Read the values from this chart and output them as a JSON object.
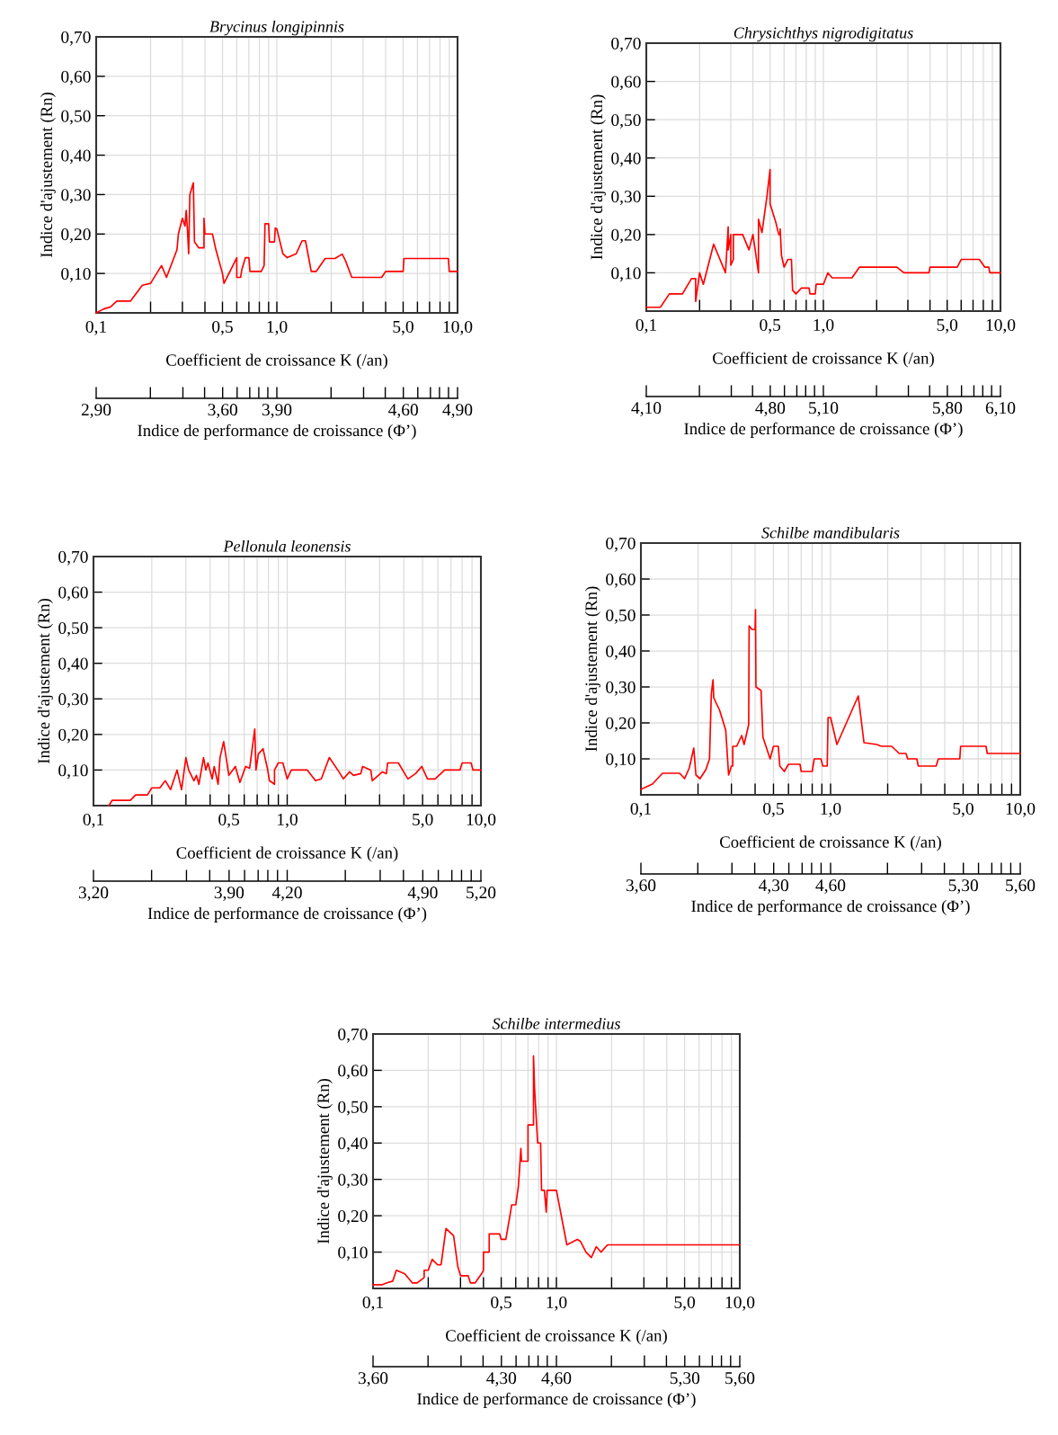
{
  "chart_data": [
    {
      "type": "line",
      "title": "Brycinus longipinnis",
      "xlabel": "Coefficient de croissance K (/an)",
      "ylabel": "Indice d'ajustement (Rn)",
      "x2label": "Indice de performance de croissance (Φ’)",
      "log": "x",
      "grid": true,
      "x": [
        0.1,
        0.11,
        0.12,
        0.13,
        0.155,
        0.18,
        0.2,
        0.23,
        0.245,
        0.28,
        0.285,
        0.3,
        0.31,
        0.315,
        0.32,
        0.325,
        0.33,
        0.345,
        0.35,
        0.37,
        0.395,
        0.395,
        0.4,
        0.44,
        0.46,
        0.5,
        0.51,
        0.6,
        0.6,
        0.63,
        0.64,
        0.67,
        0.7,
        0.71,
        0.76,
        0.82,
        0.85,
        0.86,
        0.9,
        0.91,
        0.97,
        0.98,
        1.0,
        1.08,
        1.14,
        1.28,
        1.38,
        1.44,
        1.55,
        1.65,
        1.85,
        2.1,
        2.3,
        2.4,
        2.6,
        3.8,
        4.0,
        5.0,
        5.05,
        8.9,
        9.0,
        10
      ],
      "series": [
        {
          "color": "#ff0000",
          "values": [
            0.0,
            0.01,
            0.015,
            0.03,
            0.03,
            0.07,
            0.075,
            0.12,
            0.09,
            0.16,
            0.2,
            0.24,
            0.22,
            0.26,
            0.21,
            0.15,
            0.3,
            0.33,
            0.18,
            0.165,
            0.165,
            0.24,
            0.2,
            0.2,
            0.16,
            0.1,
            0.075,
            0.14,
            0.09,
            0.09,
            0.11,
            0.14,
            0.14,
            0.105,
            0.105,
            0.105,
            0.12,
            0.226,
            0.226,
            0.18,
            0.18,
            0.215,
            0.213,
            0.15,
            0.14,
            0.15,
            0.183,
            0.183,
            0.105,
            0.105,
            0.138,
            0.138,
            0.149,
            0.132,
            0.09,
            0.09,
            0.105,
            0.105,
            0.138,
            0.138,
            0.105,
            0.105
          ]
        }
      ],
      "xlim": [
        0.1,
        10
      ],
      "ylim": [
        0,
        0.7
      ],
      "xticks": [
        {
          "value": 0.1,
          "label": "0,1"
        },
        {
          "value": 0.2,
          "label": null
        },
        {
          "value": 0.3,
          "label": null
        },
        {
          "value": 0.4,
          "label": null
        },
        {
          "value": 0.5,
          "label": "0,5"
        },
        {
          "value": 0.6,
          "label": null
        },
        {
          "value": 0.7,
          "label": null
        },
        {
          "value": 0.8,
          "label": null
        },
        {
          "value": 0.9,
          "label": null
        },
        {
          "value": 1,
          "label": "1,0"
        },
        {
          "value": 2,
          "label": null
        },
        {
          "value": 3,
          "label": null
        },
        {
          "value": 4,
          "label": null
        },
        {
          "value": 5,
          "label": "5,0"
        },
        {
          "value": 6,
          "label": null
        },
        {
          "value": 7,
          "label": null
        },
        {
          "value": 8,
          "label": null
        },
        {
          "value": 9,
          "label": null
        },
        {
          "value": 10,
          "label": "10,0"
        }
      ],
      "yticks": [
        {
          "value": 0.1,
          "label": "0,10"
        },
        {
          "value": 0.2,
          "label": "0,20"
        },
        {
          "value": 0.3,
          "label": "0,30"
        },
        {
          "value": 0.4,
          "label": "0,40"
        },
        {
          "value": 0.5,
          "label": "0,50"
        },
        {
          "value": 0.6,
          "label": "0,60"
        },
        {
          "value": 0.7,
          "label": "0,70"
        }
      ],
      "x2lim": [
        2.9,
        4.9
      ],
      "x2ticks": [
        {
          "value": 2.9,
          "label": "2,90"
        },
        {
          "value": 3.2,
          "label": null
        },
        {
          "value": 3.38,
          "label": null
        },
        {
          "value": 3.5,
          "label": null
        },
        {
          "value": 3.6,
          "label": "3,60"
        },
        {
          "value": 3.68,
          "label": null
        },
        {
          "value": 3.75,
          "label": null
        },
        {
          "value": 3.8,
          "label": null
        },
        {
          "value": 3.85,
          "label": null
        },
        {
          "value": 3.9,
          "label": "3,90"
        },
        {
          "value": 4.2,
          "label": null
        },
        {
          "value": 4.38,
          "label": null
        },
        {
          "value": 4.5,
          "label": null
        },
        {
          "value": 4.6,
          "label": "4,60"
        },
        {
          "value": 4.68,
          "label": null
        },
        {
          "value": 4.75,
          "label": null
        },
        {
          "value": 4.8,
          "label": null
        },
        {
          "value": 4.85,
          "label": null
        },
        {
          "value": 4.9,
          "label": "4,90"
        }
      ]
    },
    {
      "type": "line",
      "title": "Chrysichthys nigrodigitatus",
      "xlabel": "Coefficient de croissance K (/an)",
      "ylabel": "Indice d'ajustement (Rn)",
      "x2label": "Indice de performance de croissance (Φ’)",
      "log": "x",
      "grid": true,
      "x": [
        0.1,
        0.12,
        0.135,
        0.16,
        0.18,
        0.19,
        0.19,
        0.2,
        0.21,
        0.24,
        0.28,
        0.29,
        0.29,
        0.3,
        0.3,
        0.31,
        0.31,
        0.35,
        0.38,
        0.4,
        0.43,
        0.43,
        0.45,
        0.48,
        0.5,
        0.5,
        0.54,
        0.56,
        0.57,
        0.57,
        0.58,
        0.6,
        0.63,
        0.66,
        0.67,
        0.7,
        0.75,
        0.83,
        0.84,
        0.9,
        0.91,
        1.0,
        1.06,
        1.12,
        1.45,
        1.6,
        2.6,
        2.85,
        3.95,
        4.0,
        5.7,
        6.0,
        7.6,
        8.15,
        8.6,
        8.7,
        10
      ],
      "series": [
        {
          "color": "#ff0000",
          "values": [
            0.01,
            0.01,
            0.045,
            0.045,
            0.085,
            0.085,
            0.025,
            0.1,
            0.07,
            0.175,
            0.1,
            0.22,
            0.16,
            0.2,
            0.12,
            0.135,
            0.2,
            0.2,
            0.16,
            0.2,
            0.1,
            0.24,
            0.205,
            0.3,
            0.37,
            0.28,
            0.23,
            0.2,
            0.2,
            0.215,
            0.145,
            0.115,
            0.135,
            0.135,
            0.055,
            0.045,
            0.06,
            0.06,
            0.045,
            0.045,
            0.07,
            0.07,
            0.1,
            0.087,
            0.087,
            0.115,
            0.115,
            0.1,
            0.1,
            0.115,
            0.115,
            0.135,
            0.135,
            0.115,
            0.115,
            0.1,
            0.1
          ]
        }
      ],
      "xlim": [
        0.1,
        10
      ],
      "ylim": [
        0,
        0.7
      ],
      "xticks": [
        {
          "value": 0.1,
          "label": "0,1"
        },
        {
          "value": 0.2,
          "label": null
        },
        {
          "value": 0.3,
          "label": null
        },
        {
          "value": 0.4,
          "label": null
        },
        {
          "value": 0.5,
          "label": "0,5"
        },
        {
          "value": 0.6,
          "label": null
        },
        {
          "value": 0.7,
          "label": null
        },
        {
          "value": 0.8,
          "label": null
        },
        {
          "value": 0.9,
          "label": null
        },
        {
          "value": 1,
          "label": "1,0"
        },
        {
          "value": 2,
          "label": null
        },
        {
          "value": 3,
          "label": null
        },
        {
          "value": 4,
          "label": null
        },
        {
          "value": 5,
          "label": "5,0"
        },
        {
          "value": 6,
          "label": null
        },
        {
          "value": 7,
          "label": null
        },
        {
          "value": 8,
          "label": null
        },
        {
          "value": 9,
          "label": null
        },
        {
          "value": 10,
          "label": "10,0"
        }
      ],
      "yticks": [
        {
          "value": 0.1,
          "label": "0,10"
        },
        {
          "value": 0.2,
          "label": "0,20"
        },
        {
          "value": 0.3,
          "label": "0,30"
        },
        {
          "value": 0.4,
          "label": "0,40"
        },
        {
          "value": 0.5,
          "label": "0,50"
        },
        {
          "value": 0.6,
          "label": "0,60"
        },
        {
          "value": 0.7,
          "label": "0,70"
        }
      ],
      "x2lim": [
        4.1,
        6.1
      ],
      "x2ticks": [
        {
          "value": 4.1,
          "label": "4,10"
        },
        {
          "value": 4.4,
          "label": null
        },
        {
          "value": 4.58,
          "label": null
        },
        {
          "value": 4.7,
          "label": null
        },
        {
          "value": 4.8,
          "label": "4,80"
        },
        {
          "value": 4.88,
          "label": null
        },
        {
          "value": 4.95,
          "label": null
        },
        {
          "value": 5.0,
          "label": null
        },
        {
          "value": 5.05,
          "label": null
        },
        {
          "value": 5.1,
          "label": "5,10"
        },
        {
          "value": 5.4,
          "label": null
        },
        {
          "value": 5.58,
          "label": null
        },
        {
          "value": 5.7,
          "label": null
        },
        {
          "value": 5.8,
          "label": "5,80"
        },
        {
          "value": 5.88,
          "label": null
        },
        {
          "value": 5.95,
          "label": null
        },
        {
          "value": 6.0,
          "label": null
        },
        {
          "value": 6.05,
          "label": null
        },
        {
          "value": 6.1,
          "label": "6,10"
        }
      ]
    },
    {
      "type": "line",
      "title": "Pellonula leonensis",
      "xlabel": "Coefficient de croissance K (/an)",
      "ylabel": "Indice d'ajustement (Rn)",
      "x2label": "Indice de performance de croissance (Φ’)",
      "log": "x",
      "grid": true,
      "x": [
        0.12,
        0.125,
        0.155,
        0.165,
        0.19,
        0.2,
        0.22,
        0.235,
        0.25,
        0.27,
        0.285,
        0.3,
        0.31,
        0.33,
        0.34,
        0.35,
        0.37,
        0.38,
        0.39,
        0.41,
        0.42,
        0.44,
        0.45,
        0.47,
        0.5,
        0.54,
        0.57,
        0.61,
        0.64,
        0.68,
        0.69,
        0.71,
        0.75,
        0.79,
        0.81,
        0.86,
        0.86,
        0.9,
        0.95,
        1.0,
        1.05,
        1.27,
        1.4,
        1.5,
        1.65,
        1.85,
        1.95,
        2.1,
        2.2,
        2.4,
        2.45,
        2.7,
        2.75,
        3.1,
        3.25,
        3.3,
        3.75,
        4.2,
        4.6,
        4.95,
        5.3,
        5.8,
        6.5,
        7.8,
        8.0,
        8.9,
        9.1,
        10
      ],
      "series": [
        {
          "color": "#ff0000",
          "values": [
            0.0,
            0.015,
            0.015,
            0.03,
            0.03,
            0.05,
            0.05,
            0.07,
            0.045,
            0.1,
            0.045,
            0.135,
            0.1,
            0.07,
            0.085,
            0.06,
            0.135,
            0.1,
            0.12,
            0.075,
            0.11,
            0.06,
            0.135,
            0.18,
            0.085,
            0.11,
            0.065,
            0.11,
            0.105,
            0.215,
            0.1,
            0.145,
            0.16,
            0.105,
            0.07,
            0.06,
            0.1,
            0.12,
            0.12,
            0.075,
            0.1,
            0.1,
            0.07,
            0.075,
            0.135,
            0.095,
            0.075,
            0.095,
            0.085,
            0.09,
            0.11,
            0.1,
            0.07,
            0.095,
            0.09,
            0.12,
            0.12,
            0.075,
            0.09,
            0.11,
            0.075,
            0.075,
            0.1,
            0.1,
            0.12,
            0.12,
            0.1,
            0.1
          ]
        }
      ],
      "xlim": [
        0.1,
        10
      ],
      "ylim": [
        0,
        0.7
      ],
      "xticks": [
        {
          "value": 0.1,
          "label": "0,1"
        },
        {
          "value": 0.2,
          "label": null
        },
        {
          "value": 0.3,
          "label": null
        },
        {
          "value": 0.4,
          "label": null
        },
        {
          "value": 0.5,
          "label": "0,5"
        },
        {
          "value": 0.6,
          "label": null
        },
        {
          "value": 0.7,
          "label": null
        },
        {
          "value": 0.8,
          "label": null
        },
        {
          "value": 0.9,
          "label": null
        },
        {
          "value": 1,
          "label": "1,0"
        },
        {
          "value": 2,
          "label": null
        },
        {
          "value": 3,
          "label": null
        },
        {
          "value": 4,
          "label": null
        },
        {
          "value": 5,
          "label": "5,0"
        },
        {
          "value": 6,
          "label": null
        },
        {
          "value": 7,
          "label": null
        },
        {
          "value": 8,
          "label": null
        },
        {
          "value": 9,
          "label": null
        },
        {
          "value": 10,
          "label": "10,0"
        }
      ],
      "yticks": [
        {
          "value": 0.1,
          "label": "0,10"
        },
        {
          "value": 0.2,
          "label": "0,20"
        },
        {
          "value": 0.3,
          "label": "0,30"
        },
        {
          "value": 0.4,
          "label": "0,40"
        },
        {
          "value": 0.5,
          "label": "0,50"
        },
        {
          "value": 0.6,
          "label": "0,60"
        },
        {
          "value": 0.7,
          "label": "0,70"
        }
      ],
      "x2lim": [
        3.2,
        5.2
      ],
      "x2ticks": [
        {
          "value": 3.2,
          "label": "3,20"
        },
        {
          "value": 3.5,
          "label": null
        },
        {
          "value": 3.68,
          "label": null
        },
        {
          "value": 3.8,
          "label": null
        },
        {
          "value": 3.9,
          "label": "3,90"
        },
        {
          "value": 3.98,
          "label": null
        },
        {
          "value": 4.05,
          "label": null
        },
        {
          "value": 4.1,
          "label": null
        },
        {
          "value": 4.15,
          "label": null
        },
        {
          "value": 4.2,
          "label": "4,20"
        },
        {
          "value": 4.5,
          "label": null
        },
        {
          "value": 4.68,
          "label": null
        },
        {
          "value": 4.8,
          "label": null
        },
        {
          "value": 4.9,
          "label": "4,90"
        },
        {
          "value": 4.98,
          "label": null
        },
        {
          "value": 5.05,
          "label": null
        },
        {
          "value": 5.1,
          "label": null
        },
        {
          "value": 5.15,
          "label": null
        },
        {
          "value": 5.2,
          "label": "5,20"
        }
      ]
    },
    {
      "type": "line",
      "title": "Schilbe mandibularis",
      "xlabel": "Coefficient de croissance K (/an)",
      "ylabel": "Indice d'ajustement (Rn)",
      "x2label": "Indice de performance de croissance (Φ’)",
      "log": "x",
      "grid": true,
      "x": [
        0.1,
        0.115,
        0.13,
        0.16,
        0.17,
        0.18,
        0.19,
        0.195,
        0.205,
        0.22,
        0.23,
        0.235,
        0.24,
        0.242,
        0.26,
        0.28,
        0.29,
        0.3,
        0.305,
        0.305,
        0.32,
        0.34,
        0.35,
        0.37,
        0.372,
        0.385,
        0.4,
        0.402,
        0.404,
        0.43,
        0.44,
        0.48,
        0.5,
        0.53,
        0.54,
        0.57,
        0.6,
        0.69,
        0.7,
        0.8,
        0.82,
        0.89,
        0.91,
        0.96,
        0.97,
        1.0,
        1.08,
        1.4,
        1.5,
        1.75,
        1.85,
        2.1,
        2.3,
        2.5,
        2.55,
        2.85,
        2.9,
        3.6,
        3.7,
        4.8,
        4.85,
        6.6,
        6.7,
        10
      ],
      "series": [
        {
          "color": "#ff0000",
          "values": [
            0.015,
            0.03,
            0.06,
            0.06,
            0.045,
            0.075,
            0.13,
            0.055,
            0.045,
            0.07,
            0.1,
            0.28,
            0.32,
            0.27,
            0.235,
            0.18,
            0.055,
            0.08,
            0.08,
            0.135,
            0.135,
            0.165,
            0.14,
            0.195,
            0.47,
            0.46,
            0.46,
            0.515,
            0.3,
            0.29,
            0.16,
            0.1,
            0.135,
            0.135,
            0.08,
            0.065,
            0.085,
            0.085,
            0.065,
            0.065,
            0.1,
            0.1,
            0.08,
            0.08,
            0.215,
            0.215,
            0.14,
            0.275,
            0.145,
            0.14,
            0.135,
            0.135,
            0.115,
            0.115,
            0.1,
            0.1,
            0.08,
            0.08,
            0.1,
            0.1,
            0.135,
            0.135,
            0.115,
            0.115
          ]
        }
      ],
      "xlim": [
        0.1,
        10
      ],
      "ylim": [
        0,
        0.7
      ],
      "xticks": [
        {
          "value": 0.1,
          "label": "0,1"
        },
        {
          "value": 0.2,
          "label": null
        },
        {
          "value": 0.3,
          "label": null
        },
        {
          "value": 0.4,
          "label": null
        },
        {
          "value": 0.5,
          "label": "0,5"
        },
        {
          "value": 0.6,
          "label": null
        },
        {
          "value": 0.7,
          "label": null
        },
        {
          "value": 0.8,
          "label": null
        },
        {
          "value": 0.9,
          "label": null
        },
        {
          "value": 1,
          "label": "1,0"
        },
        {
          "value": 2,
          "label": null
        },
        {
          "value": 3,
          "label": null
        },
        {
          "value": 4,
          "label": null
        },
        {
          "value": 5,
          "label": "5,0"
        },
        {
          "value": 6,
          "label": null
        },
        {
          "value": 7,
          "label": null
        },
        {
          "value": 8,
          "label": null
        },
        {
          "value": 9,
          "label": null
        },
        {
          "value": 10,
          "label": "10,0"
        }
      ],
      "yticks": [
        {
          "value": 0.1,
          "label": "0,10"
        },
        {
          "value": 0.2,
          "label": "0,20"
        },
        {
          "value": 0.3,
          "label": "0,30"
        },
        {
          "value": 0.4,
          "label": "0,40"
        },
        {
          "value": 0.5,
          "label": "0,50"
        },
        {
          "value": 0.6,
          "label": "0,60"
        },
        {
          "value": 0.7,
          "label": "0,70"
        }
      ],
      "x2lim": [
        3.6,
        5.6
      ],
      "x2ticks": [
        {
          "value": 3.6,
          "label": "3,60"
        },
        {
          "value": 3.9,
          "label": null
        },
        {
          "value": 4.08,
          "label": null
        },
        {
          "value": 4.2,
          "label": null
        },
        {
          "value": 4.3,
          "label": "4,30"
        },
        {
          "value": 4.38,
          "label": null
        },
        {
          "value": 4.45,
          "label": null
        },
        {
          "value": 4.5,
          "label": null
        },
        {
          "value": 4.55,
          "label": null
        },
        {
          "value": 4.6,
          "label": "4,60"
        },
        {
          "value": 4.9,
          "label": null
        },
        {
          "value": 5.08,
          "label": null
        },
        {
          "value": 5.2,
          "label": null
        },
        {
          "value": 5.3,
          "label": "5,30"
        },
        {
          "value": 5.38,
          "label": null
        },
        {
          "value": 5.45,
          "label": null
        },
        {
          "value": 5.5,
          "label": null
        },
        {
          "value": 5.55,
          "label": null
        },
        {
          "value": 5.6,
          "label": "5,60"
        }
      ]
    },
    {
      "type": "line",
      "title": "Schilbe intermedius",
      "xlabel": "Coefficient de croissance K (/an)",
      "ylabel": "Indice d'ajustement (Rn)",
      "x2label": "Indice de performance de croissance (Φ’)",
      "log": "x",
      "grid": true,
      "x": [
        0.1,
        0.112,
        0.118,
        0.128,
        0.134,
        0.149,
        0.164,
        0.174,
        0.19,
        0.19,
        0.2,
        0.21,
        0.225,
        0.235,
        0.25,
        0.275,
        0.29,
        0.3,
        0.33,
        0.34,
        0.36,
        0.39,
        0.4,
        0.4,
        0.43,
        0.43,
        0.49,
        0.5,
        0.53,
        0.56,
        0.57,
        0.6,
        0.62,
        0.63,
        0.64,
        0.645,
        0.7,
        0.7,
        0.75,
        0.75,
        0.76,
        0.77,
        0.79,
        0.82,
        0.83,
        0.86,
        0.88,
        0.89,
        1.0,
        1.14,
        1.3,
        1.35,
        1.45,
        1.55,
        1.65,
        1.75,
        1.9,
        10
      ],
      "series": [
        {
          "color": "#ff0000",
          "values": [
            0.01,
            0.01,
            0.015,
            0.02,
            0.05,
            0.04,
            0.015,
            0.015,
            0.03,
            0.05,
            0.05,
            0.08,
            0.065,
            0.065,
            0.165,
            0.145,
            0.06,
            0.035,
            0.035,
            0.015,
            0.015,
            0.04,
            0.05,
            0.1,
            0.1,
            0.15,
            0.15,
            0.135,
            0.135,
            0.205,
            0.23,
            0.23,
            0.28,
            0.33,
            0.385,
            0.35,
            0.35,
            0.45,
            0.45,
            0.64,
            0.55,
            0.5,
            0.4,
            0.4,
            0.27,
            0.27,
            0.21,
            0.27,
            0.27,
            0.12,
            0.135,
            0.13,
            0.1,
            0.085,
            0.115,
            0.1,
            0.12,
            0.12
          ]
        }
      ],
      "xlim": [
        0.1,
        10
      ],
      "ylim": [
        0,
        0.7
      ],
      "xticks": [
        {
          "value": 0.1,
          "label": "0,1"
        },
        {
          "value": 0.2,
          "label": null
        },
        {
          "value": 0.3,
          "label": null
        },
        {
          "value": 0.4,
          "label": null
        },
        {
          "value": 0.5,
          "label": "0,5"
        },
        {
          "value": 0.6,
          "label": null
        },
        {
          "value": 0.7,
          "label": null
        },
        {
          "value": 0.8,
          "label": null
        },
        {
          "value": 0.9,
          "label": null
        },
        {
          "value": 1,
          "label": "1,0"
        },
        {
          "value": 2,
          "label": null
        },
        {
          "value": 3,
          "label": null
        },
        {
          "value": 4,
          "label": null
        },
        {
          "value": 5,
          "label": "5,0"
        },
        {
          "value": 6,
          "label": null
        },
        {
          "value": 7,
          "label": null
        },
        {
          "value": 8,
          "label": null
        },
        {
          "value": 9,
          "label": null
        },
        {
          "value": 10,
          "label": "10,0"
        }
      ],
      "yticks": [
        {
          "value": 0.1,
          "label": "0,10"
        },
        {
          "value": 0.2,
          "label": "0,20"
        },
        {
          "value": 0.3,
          "label": "0,30"
        },
        {
          "value": 0.4,
          "label": "0,40"
        },
        {
          "value": 0.5,
          "label": "0,50"
        },
        {
          "value": 0.6,
          "label": "0,60"
        },
        {
          "value": 0.7,
          "label": "0,70"
        }
      ],
      "x2lim": [
        3.6,
        5.6
      ],
      "x2ticks": [
        {
          "value": 3.6,
          "label": "3,60"
        },
        {
          "value": 3.9,
          "label": null
        },
        {
          "value": 4.08,
          "label": null
        },
        {
          "value": 4.2,
          "label": null
        },
        {
          "value": 4.3,
          "label": "4,30"
        },
        {
          "value": 4.38,
          "label": null
        },
        {
          "value": 4.45,
          "label": null
        },
        {
          "value": 4.5,
          "label": null
        },
        {
          "value": 4.55,
          "label": null
        },
        {
          "value": 4.6,
          "label": "4,60"
        },
        {
          "value": 4.9,
          "label": null
        },
        {
          "value": 5.08,
          "label": null
        },
        {
          "value": 5.2,
          "label": null
        },
        {
          "value": 5.3,
          "label": "5,30"
        },
        {
          "value": 5.38,
          "label": null
        },
        {
          "value": 5.45,
          "label": null
        },
        {
          "value": 5.5,
          "label": null
        },
        {
          "value": 5.55,
          "label": null
        },
        {
          "value": 5.6,
          "label": "5,60"
        }
      ]
    }
  ]
}
